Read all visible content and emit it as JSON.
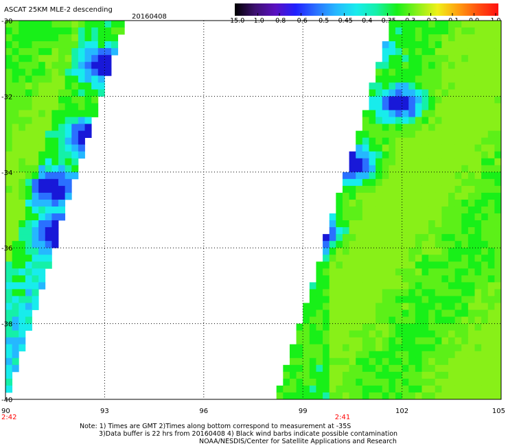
{
  "header": {
    "title": "ASCAT 25KM MLE-2 descending",
    "date": "20160408"
  },
  "colorbar": {
    "labels": [
      "-15.0",
      "-1.0",
      "-0.8",
      "-0.6",
      "-0.5",
      "-0.45",
      "-0.4",
      "-0.35",
      "-0.3",
      "-0.2",
      "-0.1",
      "0.0",
      "1.0"
    ],
    "colors": [
      "#000000",
      "#3c1070",
      "#5a10c0",
      "#2020ff",
      "#2a70ff",
      "#25b8ff",
      "#18ecec",
      "#15f0a8",
      "#18f018",
      "#88f018",
      "#f0f018",
      "#ffa010",
      "#ff5010",
      "#ff1010"
    ]
  },
  "map": {
    "lon_labels": [
      "90",
      "93",
      "96",
      "99",
      "102",
      "105"
    ],
    "lat_labels": [
      "-30",
      "-32",
      "-34",
      "-36",
      "-38",
      "-40"
    ],
    "time_labels": [
      "2:42",
      "2:41"
    ],
    "time_color": "#ff0000",
    "swaths": [
      {
        "name": "west-swath",
        "lon_range": [
          90.0,
          93.7
        ]
      },
      {
        "name": "east-swath",
        "lon_range": [
          98.2,
          105.0
        ]
      }
    ],
    "low_mle_cells": [
      {
        "lon": 93.0,
        "lat": -31.2
      },
      {
        "lon": 92.5,
        "lat": -33.1
      },
      {
        "lon": 91.3,
        "lat": -34.4
      },
      {
        "lon": 91.7,
        "lat": -35.6
      },
      {
        "lon": 100.5,
        "lat": -33.8
      },
      {
        "lon": 100.9,
        "lat": -30.6
      },
      {
        "lon": 102.0,
        "lat": -32.2
      },
      {
        "lon": 99.5,
        "lat": -35.6
      }
    ]
  },
  "notes": [
    "Note: 1) Times are GMT 2)Times along bottom correspond to measurement at -35S",
    "3)Data buffer is 22 hrs from 20160408 4) Black wind barbs indicate possible contamination",
    "NOAA/NESDIS/Center for Satellite Applications and Research"
  ]
}
